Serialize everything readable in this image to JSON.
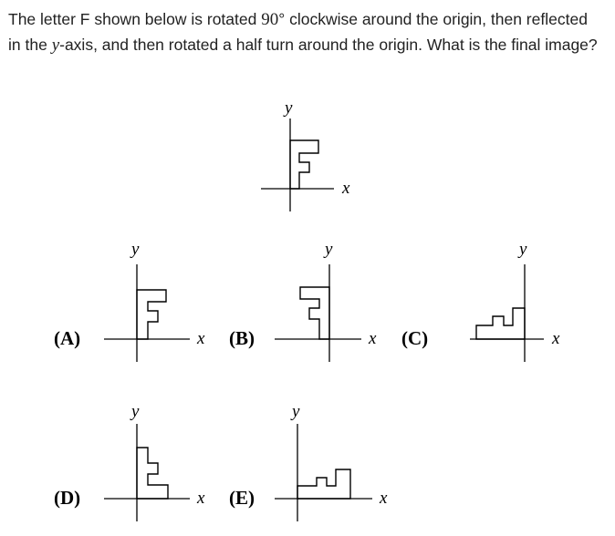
{
  "question": {
    "part1": "The letter F shown below is rotated ",
    "angle": "90",
    "degree": "°",
    "part2": " clockwise around the origin, then reflected in the ",
    "axis_var": "y",
    "part3": "-axis, and then rotated a half turn around the origin. What is the final image?"
  },
  "axis_labels": {
    "x": "x",
    "y": "y"
  },
  "options": [
    {
      "label": "(A)"
    },
    {
      "label": "(B)"
    },
    {
      "label": "(C)"
    },
    {
      "label": "(D)"
    },
    {
      "label": "(E)"
    }
  ]
}
